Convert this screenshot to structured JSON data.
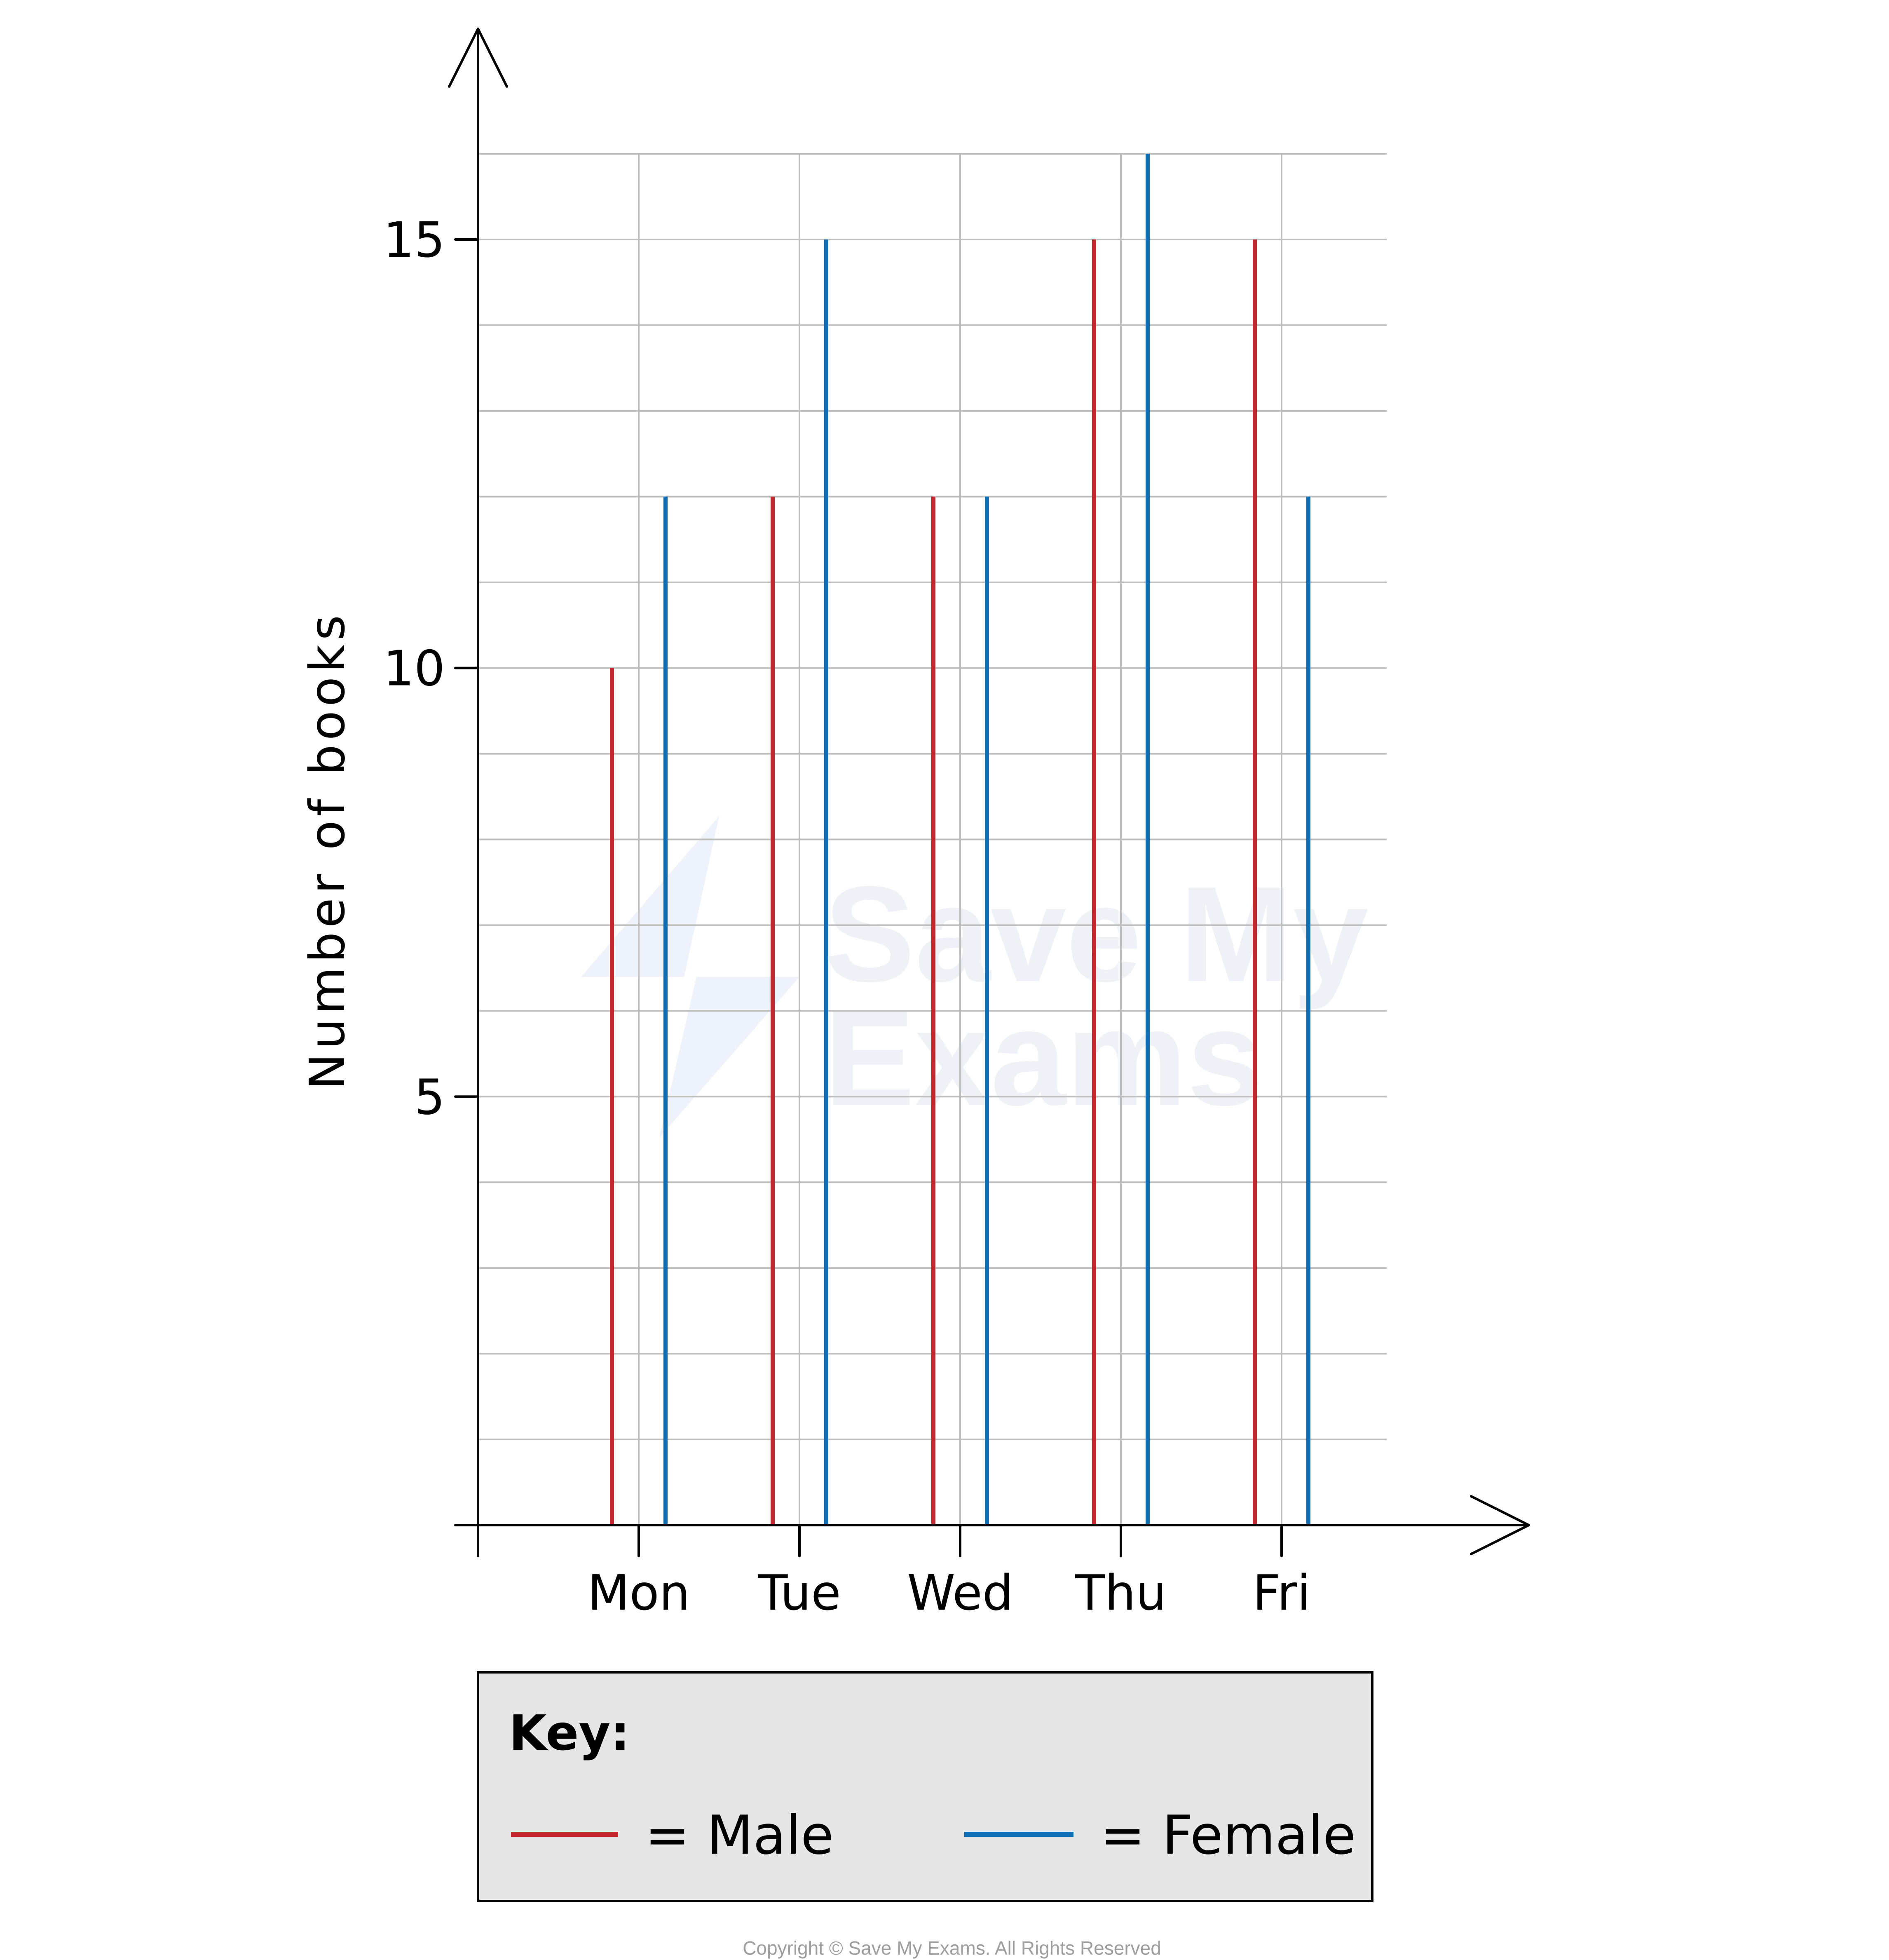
{
  "chart_data": {
    "type": "vertical-line",
    "title": "",
    "xlabel": "",
    "ylabel": "Number of books",
    "categories": [
      "Mon",
      "Tue",
      "Wed",
      "Thu",
      "Fri"
    ],
    "series": [
      {
        "name": "Male",
        "color": "#c1272d",
        "values": [
          10,
          12,
          12,
          15,
          15
        ]
      },
      {
        "name": "Female",
        "color": "#0f6eb4",
        "values": [
          12,
          15,
          12,
          16,
          12
        ]
      }
    ],
    "ylim": [
      0,
      16
    ],
    "yticks": [
      5,
      10,
      15
    ],
    "grid": true,
    "legend": "bottom"
  },
  "key": {
    "title": "Key:",
    "male_label": "= Male",
    "female_label": "= Female"
  },
  "watermark": {
    "line1": "Save My",
    "line2": "Exams"
  },
  "copyright": "Copyright © Save My Exams. All Rights Reserved"
}
